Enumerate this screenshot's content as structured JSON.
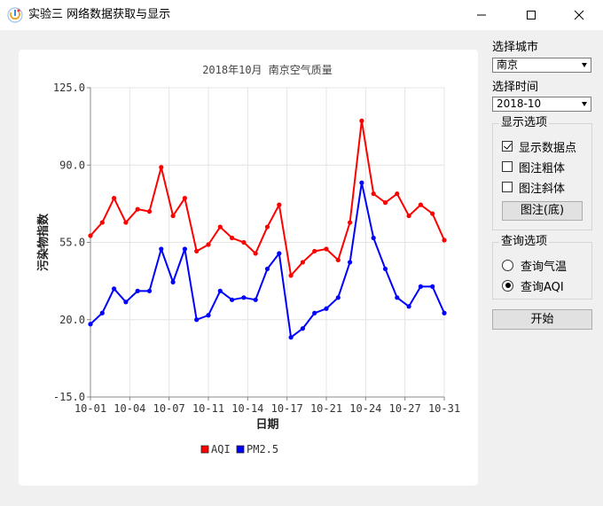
{
  "window": {
    "title": "实验三 网络数据获取与显示",
    "icon": "app-logo-icon",
    "controls": [
      "minimize-icon",
      "maximize-icon",
      "close-icon"
    ]
  },
  "sidebar": {
    "city_label": "选择城市",
    "city_value": "南京",
    "time_label": "选择时间",
    "time_value": "2018-10",
    "display_group": {
      "title": "显示选项",
      "options": [
        {
          "label": "显示数据点",
          "checked": true
        },
        {
          "label": "图注粗体",
          "checked": false
        },
        {
          "label": "图注斜体",
          "checked": false
        }
      ],
      "legend_button": "图注(底)"
    },
    "query_group": {
      "title": "查询选项",
      "options": [
        {
          "label": "查询气温",
          "selected": false
        },
        {
          "label": "查询AQI",
          "selected": true
        }
      ]
    },
    "start_button": "开始"
  },
  "chart_data": {
    "type": "line",
    "title": "2018年10月 南京空气质量",
    "xlabel": "日期",
    "ylabel": "污染物指数",
    "ylim": [
      -15,
      125
    ],
    "yticks": [
      "125.0",
      "90.0",
      "55.0",
      "20.0",
      "-15.0"
    ],
    "xticks": [
      "10-01",
      "10-04",
      "10-07",
      "10-11",
      "10-14",
      "10-17",
      "10-21",
      "10-24",
      "10-27",
      "10-31"
    ],
    "grid": true,
    "legend_position": "bottom",
    "show_points": true,
    "x": [
      1,
      2,
      3,
      4,
      5,
      6,
      7,
      8,
      9,
      10,
      11,
      12,
      13,
      14,
      15,
      16,
      17,
      18,
      19,
      20,
      21,
      22,
      23,
      24,
      25,
      26,
      27,
      28,
      29,
      30,
      31
    ],
    "series": [
      {
        "name": "AQI",
        "color": "#ff0000",
        "values": [
          58,
          64,
          75,
          64,
          70,
          69,
          89,
          67,
          75,
          51,
          54,
          62,
          57,
          55,
          50,
          62,
          72,
          40,
          46,
          51,
          52,
          47,
          64,
          110,
          77,
          73,
          77,
          67,
          72,
          68,
          56
        ]
      },
      {
        "name": "PM2.5",
        "color": "#0000ff",
        "values": [
          18,
          23,
          34,
          28,
          33,
          33,
          52,
          37,
          52,
          20,
          22,
          33,
          29,
          30,
          29,
          43,
          50,
          12,
          16,
          23,
          25,
          30,
          46,
          82,
          57,
          43,
          30,
          26,
          35,
          35,
          23
        ]
      }
    ]
  }
}
